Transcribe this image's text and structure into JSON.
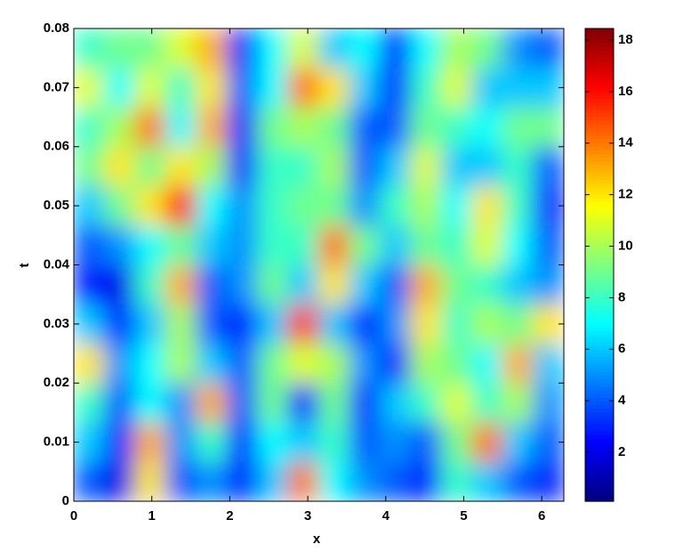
{
  "chart_data": {
    "type": "heatmap",
    "colormap": "jet",
    "xlabel": "x",
    "ylabel": "t",
    "xlim": [
      0,
      6.2832
    ],
    "ylim": [
      0,
      0.08
    ],
    "xticks": [
      0,
      1,
      2,
      3,
      4,
      5,
      6
    ],
    "yticks": [
      0,
      0.01,
      0.02,
      0.03,
      0.04,
      0.05,
      0.06,
      0.07,
      0.08
    ],
    "clim": [
      0.1,
      18.45
    ],
    "cticks": [
      2,
      4,
      6,
      8,
      10,
      12,
      14,
      16,
      18
    ],
    "x": [
      0.196,
      0.589,
      0.982,
      1.374,
      1.767,
      2.16,
      2.553,
      2.945,
      3.338,
      3.731,
      4.123,
      4.516,
      4.909,
      5.301,
      5.694,
      6.087
    ],
    "y": [
      0.0033,
      0.01,
      0.0167,
      0.0233,
      0.03,
      0.0367,
      0.0433,
      0.05,
      0.0567,
      0.0633,
      0.07,
      0.0767
    ],
    "z": [
      [
        4,
        2,
        12,
        4,
        5,
        3,
        6,
        14,
        7,
        5,
        4,
        3,
        8,
        6,
        4,
        3
      ],
      [
        6,
        3,
        13,
        5,
        8,
        3,
        7,
        6,
        8,
        4,
        5,
        4,
        9,
        14,
        6,
        4
      ],
      [
        8,
        4,
        7,
        5,
        13,
        4,
        9,
        3,
        9,
        3,
        6,
        8,
        11,
        8,
        10,
        5
      ],
      [
        12,
        5,
        7,
        10,
        6,
        4,
        9,
        11,
        10,
        5,
        3,
        10,
        9,
        7,
        13,
        6
      ],
      [
        6,
        3,
        6,
        10,
        4,
        3,
        6,
        15,
        6,
        3,
        5,
        12,
        8,
        10,
        9,
        12
      ],
      [
        3,
        2,
        8,
        13,
        4,
        5,
        9,
        6,
        12,
        6,
        4,
        13,
        9,
        8,
        6,
        5
      ],
      [
        4,
        5,
        7,
        9,
        6,
        5,
        8,
        8,
        14,
        9,
        6,
        9,
        8,
        11,
        7,
        4
      ],
      [
        6,
        9,
        12,
        16,
        7,
        5,
        8,
        9,
        9,
        5,
        8,
        10,
        7,
        12,
        8,
        3
      ],
      [
        9,
        12,
        9,
        12,
        10,
        3,
        8,
        8,
        10,
        4,
        6,
        11,
        6,
        6,
        8,
        4
      ],
      [
        8,
        10,
        14,
        7,
        13,
        3,
        9,
        10,
        9,
        4,
        4,
        9,
        8,
        7,
        9,
        9
      ],
      [
        11,
        7,
        11,
        8,
        12,
        4,
        7,
        14,
        12,
        6,
        3,
        8,
        11,
        6,
        6,
        6
      ],
      [
        8,
        9,
        9,
        11,
        13,
        3,
        7,
        11,
        6,
        7,
        3,
        7,
        10,
        9,
        5,
        4
      ]
    ]
  }
}
